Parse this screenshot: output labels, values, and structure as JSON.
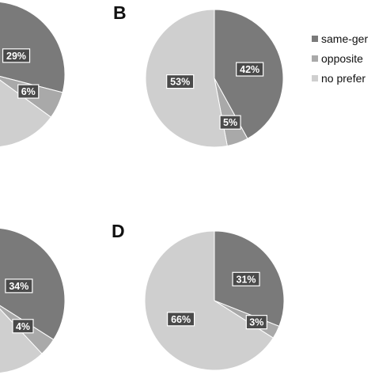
{
  "colors": {
    "same_gender": "#7a7a7a",
    "opposite": "#a9a9a9",
    "no_preference": "#cfcfcf",
    "label_box": "#4a4a4a"
  },
  "legend": [
    {
      "label": "same-ger",
      "color": "#7a7a7a"
    },
    {
      "label": "opposite",
      "color": "#a9a9a9"
    },
    {
      "label": "no prefer",
      "color": "#cfcfcf"
    }
  ],
  "chart_data": [
    {
      "type": "pie",
      "panel": "",
      "slices": [
        {
          "series": "same-gender",
          "value": 29,
          "label": "29%"
        },
        {
          "series": "opposite",
          "value": 6,
          "label": "6%"
        },
        {
          "series": "no preference",
          "value": 65,
          "label": ""
        }
      ]
    },
    {
      "type": "pie",
      "panel": "B",
      "slices": [
        {
          "series": "same-gender",
          "value": 42,
          "label": "42%"
        },
        {
          "series": "opposite",
          "value": 5,
          "label": "5%"
        },
        {
          "series": "no preference",
          "value": 53,
          "label": "53%"
        }
      ]
    },
    {
      "type": "pie",
      "panel": "",
      "slices": [
        {
          "series": "same-gender",
          "value": 34,
          "label": "34%"
        },
        {
          "series": "opposite",
          "value": 4,
          "label": "4%"
        },
        {
          "series": "no preference",
          "value": 62,
          "label": ""
        }
      ]
    },
    {
      "type": "pie",
      "panel": "D",
      "slices": [
        {
          "series": "same-gender",
          "value": 31,
          "label": "31%"
        },
        {
          "series": "opposite",
          "value": 3,
          "label": "3%"
        },
        {
          "series": "no preference",
          "value": 66,
          "label": "66%"
        }
      ]
    }
  ]
}
